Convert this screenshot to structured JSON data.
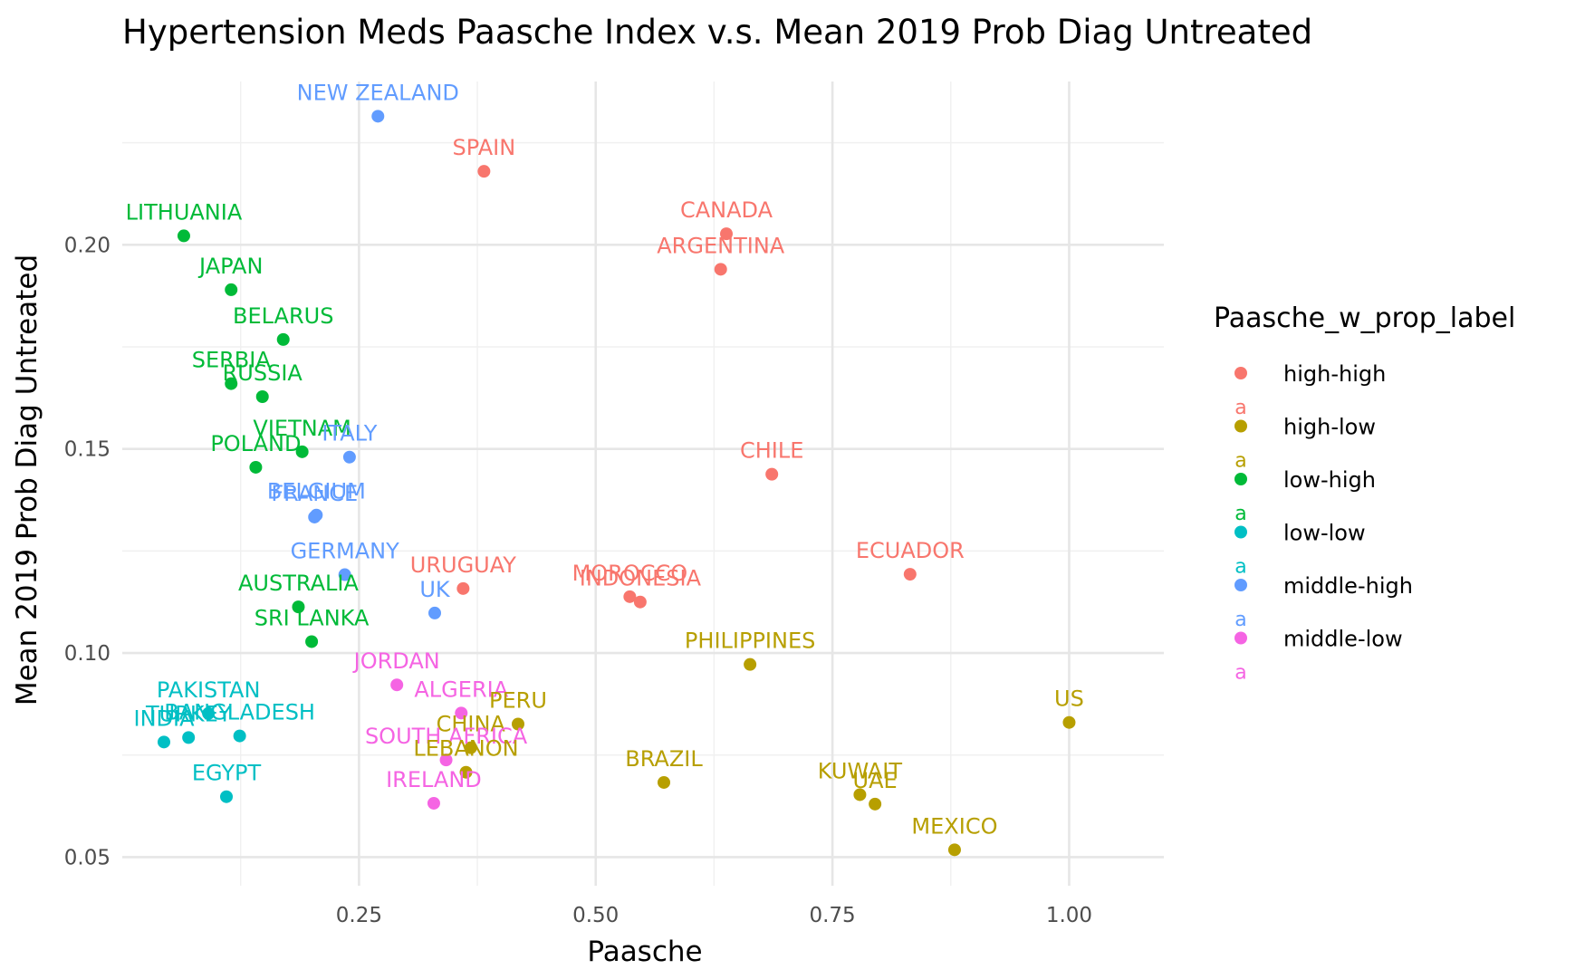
{
  "chart_data": {
    "type": "scatter",
    "title": "Hypertension Meds Paasche Index v.s. Mean 2019 Prob Diag Untreated",
    "xlabel": "Paasche",
    "ylabel": "Mean 2019 Prob Diag Untreated",
    "xlim": [
      0.0,
      1.1
    ],
    "ylim": [
      0.043,
      0.24
    ],
    "x_ticks": [
      0.25,
      0.5,
      0.75,
      1.0
    ],
    "x_tick_labels": [
      "0.25",
      "0.50",
      "0.75",
      "1.00"
    ],
    "y_ticks": [
      0.05,
      0.1,
      0.15,
      0.2
    ],
    "y_tick_labels": [
      "0.05",
      "0.10",
      "0.15",
      "0.20"
    ],
    "grid": true,
    "legend": {
      "title": "Paasche_w_prop_label",
      "position": "right",
      "glyph": "a"
    },
    "groups": [
      {
        "name": "high-high",
        "color": "#F8766D"
      },
      {
        "name": "high-low",
        "color": "#B79F00"
      },
      {
        "name": "low-high",
        "color": "#00BA38"
      },
      {
        "name": "low-low",
        "color": "#00BFC4"
      },
      {
        "name": "middle-high",
        "color": "#619CFF"
      },
      {
        "name": "middle-low",
        "color": "#F564E3"
      }
    ],
    "points": [
      {
        "label": "NEW ZEALAND",
        "group": "middle-high",
        "x": 0.27,
        "y": 0.2315
      },
      {
        "label": "SPAIN",
        "group": "high-high",
        "x": 0.382,
        "y": 0.218
      },
      {
        "label": "LITHUANIA",
        "group": "low-high",
        "x": 0.065,
        "y": 0.2022
      },
      {
        "label": "CANADA",
        "group": "high-high",
        "x": 0.638,
        "y": 0.2027
      },
      {
        "label": "ARGENTINA",
        "group": "high-high",
        "x": 0.632,
        "y": 0.194
      },
      {
        "label": "JAPAN",
        "group": "low-high",
        "x": 0.115,
        "y": 0.189
      },
      {
        "label": "BELARUS",
        "group": "low-high",
        "x": 0.17,
        "y": 0.1768
      },
      {
        "label": "SERBIA",
        "group": "low-high",
        "x": 0.115,
        "y": 0.166
      },
      {
        "label": "RUSSIA",
        "group": "low-high",
        "x": 0.148,
        "y": 0.1628
      },
      {
        "label": "VIETNAM",
        "group": "low-high",
        "x": 0.19,
        "y": 0.1493
      },
      {
        "label": "ITALY",
        "group": "middle-high",
        "x": 0.24,
        "y": 0.148
      },
      {
        "label": "POLAND",
        "group": "low-high",
        "x": 0.141,
        "y": 0.1455
      },
      {
        "label": "CHILE",
        "group": "high-high",
        "x": 0.686,
        "y": 0.1438
      },
      {
        "label": "BELGIUM",
        "group": "middle-high",
        "x": 0.205,
        "y": 0.1338
      },
      {
        "label": "FRANCE",
        "group": "middle-high",
        "x": 0.203,
        "y": 0.1333
      },
      {
        "label": "GERMANY",
        "group": "middle-high",
        "x": 0.235,
        "y": 0.1192
      },
      {
        "label": "ECUADOR",
        "group": "high-high",
        "x": 0.832,
        "y": 0.1193
      },
      {
        "label": "URUGUAY",
        "group": "high-high",
        "x": 0.36,
        "y": 0.1158
      },
      {
        "label": "MOROCCO",
        "group": "high-high",
        "x": 0.536,
        "y": 0.1138
      },
      {
        "label": "INDONESIA",
        "group": "high-high",
        "x": 0.547,
        "y": 0.1125
      },
      {
        "label": "AUSTRALIA",
        "group": "low-high",
        "x": 0.186,
        "y": 0.1113
      },
      {
        "label": "UK",
        "group": "middle-high",
        "x": 0.33,
        "y": 0.1098
      },
      {
        "label": "SRI LANKA",
        "group": "low-high",
        "x": 0.2,
        "y": 0.1028
      },
      {
        "label": "PHILIPPINES",
        "group": "high-low",
        "x": 0.663,
        "y": 0.0972
      },
      {
        "label": "JORDAN",
        "group": "middle-low",
        "x": 0.29,
        "y": 0.0922
      },
      {
        "label": "ALGERIA",
        "group": "middle-low",
        "x": 0.358,
        "y": 0.0853
      },
      {
        "label": "PERU",
        "group": "high-low",
        "x": 0.418,
        "y": 0.0826
      },
      {
        "label": "US",
        "group": "high-low",
        "x": 1.0,
        "y": 0.083
      },
      {
        "label": "PAKISTAN",
        "group": "low-low",
        "x": 0.091,
        "y": 0.0852
      },
      {
        "label": "TURKEY",
        "group": "low-low",
        "x": 0.07,
        "y": 0.0793
      },
      {
        "label": "BANGLADESH",
        "group": "low-low",
        "x": 0.124,
        "y": 0.0797
      },
      {
        "label": "INDIA",
        "group": "low-low",
        "x": 0.044,
        "y": 0.0782
      },
      {
        "label": "CHINA",
        "group": "high-low",
        "x": 0.368,
        "y": 0.0768
      },
      {
        "label": "SOUTH AFRICA",
        "group": "middle-low",
        "x": 0.342,
        "y": 0.0738
      },
      {
        "label": "LEBANON",
        "group": "high-low",
        "x": 0.363,
        "y": 0.0708
      },
      {
        "label": "BRAZIL",
        "group": "high-low",
        "x": 0.572,
        "y": 0.0683
      },
      {
        "label": "KUWAIT",
        "group": "high-low",
        "x": 0.779,
        "y": 0.0653
      },
      {
        "label": "UAE",
        "group": "high-low",
        "x": 0.795,
        "y": 0.063
      },
      {
        "label": "EGYPT",
        "group": "low-low",
        "x": 0.11,
        "y": 0.0648
      },
      {
        "label": "IRELAND",
        "group": "middle-low",
        "x": 0.329,
        "y": 0.0632
      },
      {
        "label": "MEXICO",
        "group": "high-low",
        "x": 0.879,
        "y": 0.0518
      }
    ]
  }
}
